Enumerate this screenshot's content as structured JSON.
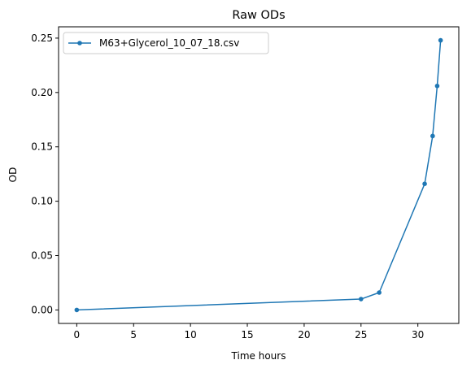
{
  "chart_data": {
    "type": "line",
    "title": "Raw ODs",
    "xlabel": "Time hours",
    "ylabel": "OD",
    "xlim": [
      -1.6,
      33.6
    ],
    "ylim": [
      -0.0124,
      0.2604
    ],
    "xticks": [
      0,
      5,
      10,
      15,
      20,
      25,
      30
    ],
    "xtick_labels": [
      "0",
      "5",
      "10",
      "15",
      "20",
      "25",
      "30"
    ],
    "yticks": [
      0.0,
      0.05,
      0.1,
      0.15,
      0.2,
      0.25
    ],
    "ytick_labels": [
      "0.00",
      "0.05",
      "0.10",
      "0.15",
      "0.20",
      "0.25"
    ],
    "grid": false,
    "legend_position": "upper-left",
    "series": [
      {
        "name": "M63+Glycerol_10_07_18.csv",
        "color": "#1f77b4",
        "marker": "dot",
        "x": [
          0.0,
          25.0,
          26.6,
          30.6,
          31.3,
          31.7,
          32.0
        ],
        "y": [
          0.0,
          0.01,
          0.016,
          0.116,
          0.16,
          0.206,
          0.248
        ]
      }
    ]
  }
}
